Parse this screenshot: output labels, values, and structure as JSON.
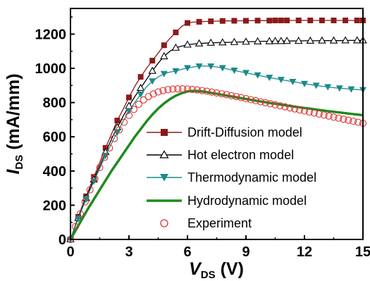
{
  "chart_data": {
    "type": "line",
    "xlabel": {
      "main": "V",
      "sub": "DS",
      "unit": " (V)"
    },
    "ylabel": {
      "main": "I",
      "sub": "DS",
      "unit": " (mA/mm)"
    },
    "xlim": [
      0,
      15
    ],
    "ylim": [
      0,
      1350
    ],
    "xticks": [
      "0",
      "3",
      "6",
      "9",
      "12",
      "15"
    ],
    "yticks": [
      "0",
      "200",
      "400",
      "600",
      "800",
      "1000",
      "1200"
    ],
    "grid": false,
    "legend_position": "lower-right",
    "series": [
      {
        "name": "Drift-Diffusion model",
        "color": "#8b1a1a",
        "marker": "filled-square",
        "x": [
          0.0,
          0.3,
          0.6,
          0.9,
          1.2,
          1.5,
          1.8,
          2.1,
          2.4,
          2.7,
          3.0,
          3.3,
          3.6,
          3.9,
          4.2,
          4.5,
          4.8,
          5.1,
          5.4,
          5.7,
          6.0,
          6.3,
          6.6,
          6.9,
          7.2,
          7.5,
          7.8,
          8.1,
          8.4,
          8.7,
          9.0,
          9.3,
          9.6,
          9.9,
          10.2,
          10.5,
          10.8,
          11.1,
          11.4,
          11.7,
          12.0,
          12.3,
          12.6,
          12.9,
          13.2,
          13.5,
          13.8,
          14.1,
          14.4,
          14.7,
          15.0
        ],
        "y": [
          0,
          100,
          195,
          280,
          365,
          450,
          535,
          615,
          695,
          760,
          830,
          895,
          950,
          1000,
          1045,
          1090,
          1135,
          1175,
          1210,
          1245,
          1265,
          1270,
          1272,
          1274,
          1275,
          1276,
          1277,
          1277,
          1278,
          1278,
          1278,
          1279,
          1279,
          1279,
          1279,
          1280,
          1280,
          1280,
          1280,
          1280,
          1280,
          1280,
          1280,
          1280,
          1280,
          1280,
          1280,
          1280,
          1280,
          1280,
          1280
        ],
        "marker_x": [
          0.0,
          0.4,
          0.8,
          1.2,
          1.8,
          2.4,
          3.0,
          3.6,
          4.2,
          4.8,
          5.4,
          6.0,
          6.6,
          7.2,
          7.8,
          8.4,
          9.0,
          9.6,
          10.2,
          10.5,
          10.8,
          11.1,
          11.7,
          12.3,
          12.9,
          13.5,
          14.1,
          14.7,
          15.0
        ]
      },
      {
        "name": "Hot electron model",
        "color": "#000000",
        "marker": "open-triangle",
        "x": [
          0.0,
          0.3,
          0.6,
          0.9,
          1.2,
          1.5,
          1.8,
          2.1,
          2.4,
          2.7,
          3.0,
          3.3,
          3.6,
          3.9,
          4.2,
          4.5,
          4.8,
          5.1,
          5.4,
          5.7,
          6.0,
          6.3,
          6.6,
          6.9,
          7.2,
          7.5,
          7.8,
          8.1,
          8.4,
          8.7,
          9.0,
          9.3,
          9.6,
          9.9,
          10.2,
          10.5,
          10.8,
          11.1,
          11.4,
          11.7,
          12.0,
          12.3,
          12.6,
          12.9,
          13.2,
          13.5,
          13.8,
          14.1,
          14.4,
          14.7,
          15.0
        ],
        "y": [
          0,
          95,
          185,
          270,
          350,
          430,
          510,
          585,
          655,
          720,
          780,
          835,
          885,
          935,
          985,
          1030,
          1070,
          1100,
          1120,
          1130,
          1138,
          1142,
          1145,
          1147,
          1149,
          1150,
          1151,
          1152,
          1153,
          1154,
          1155,
          1156,
          1157,
          1158,
          1158,
          1159,
          1159,
          1160,
          1160,
          1160,
          1161,
          1161,
          1161,
          1162,
          1162,
          1162,
          1162,
          1163,
          1163,
          1163,
          1163
        ],
        "marker_x": [
          0.0,
          0.4,
          0.8,
          1.2,
          1.8,
          2.4,
          3.0,
          3.6,
          4.2,
          4.8,
          5.4,
          6.0,
          6.6,
          7.2,
          7.8,
          8.4,
          9.0,
          9.6,
          10.2,
          10.5,
          10.8,
          11.1,
          11.7,
          12.3,
          12.9,
          13.5,
          14.1,
          14.7,
          15.0
        ]
      },
      {
        "name": "Thermodynamic model",
        "color": "#1a8a8a",
        "marker": "filled-down-triangle",
        "x": [
          0.0,
          0.3,
          0.6,
          0.9,
          1.2,
          1.5,
          1.8,
          2.1,
          2.4,
          2.7,
          3.0,
          3.3,
          3.6,
          3.9,
          4.2,
          4.5,
          4.8,
          5.1,
          5.4,
          5.7,
          6.0,
          6.3,
          6.6,
          6.9,
          7.2,
          7.5,
          7.8,
          8.1,
          8.4,
          8.7,
          9.0,
          9.3,
          9.6,
          9.9,
          10.2,
          10.5,
          10.8,
          11.1,
          11.4,
          11.7,
          12.0,
          12.3,
          12.6,
          12.9,
          13.2,
          13.5,
          13.8,
          14.1,
          14.4,
          14.7,
          15.0
        ],
        "y": [
          0,
          92,
          180,
          262,
          340,
          415,
          490,
          560,
          625,
          690,
          750,
          800,
          848,
          892,
          925,
          950,
          968,
          978,
          984,
          994,
          1002,
          1008,
          1012,
          1014,
          1012,
          1008,
          1002,
          995,
          988,
          981,
          974,
          967,
          960,
          953,
          946,
          940,
          934,
          928,
          922,
          916,
          910,
          905,
          900,
          895,
          891,
          887,
          884,
          881,
          878,
          876,
          874
        ],
        "marker_x": [
          0.0,
          0.4,
          0.8,
          1.2,
          1.8,
          2.4,
          3.0,
          3.6,
          4.2,
          4.8,
          5.4,
          6.0,
          6.6,
          7.2,
          7.8,
          8.4,
          9.0,
          9.6,
          10.2,
          10.8,
          11.4,
          12.0,
          12.6,
          13.2,
          13.8,
          14.4,
          15.0
        ]
      },
      {
        "name": "Hydrodynamic model",
        "color": "#1f8a1f",
        "marker": "none",
        "x": [
          0.0,
          0.3,
          0.6,
          0.9,
          1.2,
          1.5,
          1.8,
          2.1,
          2.4,
          2.7,
          3.0,
          3.3,
          3.6,
          3.9,
          4.2,
          4.5,
          4.8,
          5.1,
          5.4,
          5.7,
          6.0,
          6.3,
          6.6,
          6.9,
          7.2,
          7.5,
          7.8,
          8.1,
          8.4,
          8.7,
          9.0,
          9.3,
          9.6,
          9.9,
          10.2,
          10.5,
          10.8,
          11.1,
          11.4,
          11.7,
          12.0,
          12.3,
          12.6,
          12.9,
          13.2,
          13.5,
          13.8,
          14.1,
          14.4,
          14.7,
          15.0
        ],
        "y": [
          0,
          60,
          120,
          180,
          235,
          290,
          345,
          400,
          450,
          500,
          550,
          600,
          645,
          690,
          730,
          765,
          795,
          820,
          840,
          855,
          865,
          868,
          867,
          863,
          857,
          851,
          845,
          839,
          833,
          827,
          821,
          815,
          809,
          804,
          798,
          793,
          788,
          783,
          778,
          773,
          768,
          764,
          759,
          755,
          750,
          746,
          742,
          738,
          734,
          730,
          726
        ],
        "marker_x": []
      },
      {
        "name": "Experiment",
        "color": "#e03030",
        "marker": "open-circle",
        "x": [
          0.0,
          0.25,
          0.5,
          0.75,
          1.0,
          1.25,
          1.5,
          1.75,
          2.0,
          2.25,
          2.5,
          2.75,
          3.0,
          3.25,
          3.5,
          3.75,
          4.0,
          4.25,
          4.5,
          4.75,
          5.0,
          5.25,
          5.5,
          5.75,
          6.0,
          6.25,
          6.5,
          6.75,
          7.0,
          7.25,
          7.5,
          7.75,
          8.0,
          8.25,
          8.5,
          8.75,
          9.0,
          9.25,
          9.5,
          9.75,
          10.0,
          10.25,
          10.5,
          10.75,
          11.0,
          11.25,
          11.5,
          11.75,
          12.0,
          12.25,
          12.5,
          12.75,
          13.0,
          13.25,
          13.5,
          13.75,
          14.0,
          14.25,
          14.5,
          14.75,
          15.0
        ],
        "y": [
          0,
          75,
          150,
          220,
          290,
          355,
          420,
          480,
          535,
          590,
          640,
          685,
          725,
          760,
          790,
          815,
          835,
          850,
          862,
          870,
          876,
          879,
          880,
          880,
          879,
          877,
          874,
          870,
          866,
          861,
          856,
          851,
          846,
          840,
          835,
          829,
          823,
          817,
          811,
          805,
          799,
          793,
          787,
          781,
          775,
          769,
          763,
          757,
          751,
          745,
          739,
          733,
          727,
          721,
          715,
          709,
          703,
          697,
          691,
          685,
          679
        ],
        "marker_x": []
      }
    ]
  }
}
